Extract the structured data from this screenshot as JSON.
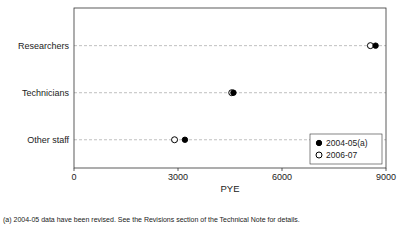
{
  "chart_data": {
    "type": "dot",
    "orientation": "horizontal",
    "categories": [
      "Researchers",
      "Technicians",
      "Other staff"
    ],
    "series": [
      {
        "name": "2004-05(a)",
        "color": "#000000",
        "marker": "circle",
        "values": [
          8700,
          4600,
          3200
        ]
      },
      {
        "name": "2006-07",
        "color": "#000000",
        "marker": "open-circle",
        "values": [
          8550,
          4550,
          2900
        ]
      }
    ],
    "x_label": "PYE",
    "xlim": [
      0,
      9000
    ],
    "xticks": [
      0,
      3000,
      6000,
      9000
    ],
    "grid": true,
    "legend": "lower right",
    "footnote": "(a) 2004-05 data have been revised.  See the Revisions section of the Technical Note for details."
  }
}
